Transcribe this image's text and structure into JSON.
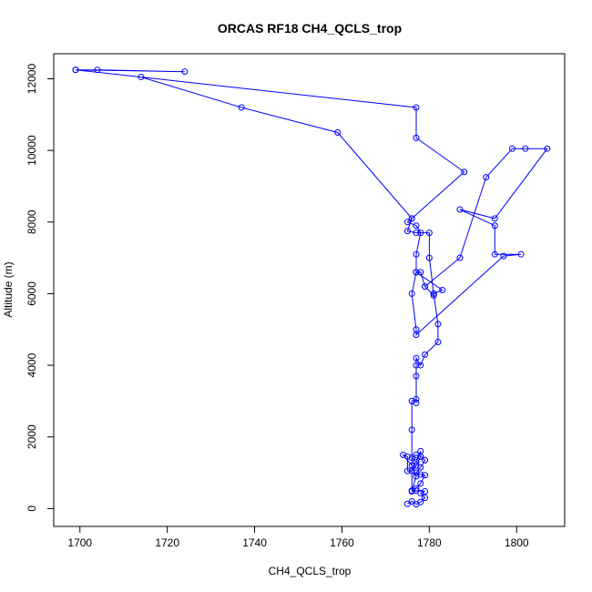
{
  "chart_data": {
    "type": "line",
    "title": "ORCAS RF18 CH4_QCLS_trop",
    "xlabel": "CH4_QCLS_trop",
    "ylabel": "Altitude (m)",
    "xlim": [
      1694,
      1811
    ],
    "ylim": [
      -500,
      12700
    ],
    "xticks": [
      1700,
      1720,
      1740,
      1760,
      1780,
      1800
    ],
    "yticks": [
      0,
      2000,
      4000,
      6000,
      8000,
      10000,
      12000
    ],
    "grid": false,
    "legend": "none",
    "color": "#0000ff",
    "series": [
      {
        "points": [
          [
            1775,
            130
          ],
          [
            1776,
            200
          ],
          [
            1777,
            120
          ],
          [
            1778,
            180
          ],
          [
            1779,
            300
          ],
          [
            1778,
            430
          ],
          [
            1779,
            480
          ],
          [
            1777,
            500
          ],
          [
            1776,
            480
          ],
          [
            1777,
            560
          ],
          [
            1778,
            700
          ],
          [
            1779,
            930
          ],
          [
            1778,
            950
          ],
          [
            1777,
            1000
          ],
          [
            1778,
            1150
          ],
          [
            1779,
            1350
          ],
          [
            1778,
            1450
          ],
          [
            1777,
            1500
          ],
          [
            1776,
            1420
          ],
          [
            1777,
            1300
          ],
          [
            1778,
            1600
          ],
          [
            1778,
            1450
          ],
          [
            1777,
            1200
          ],
          [
            1776,
            1050
          ],
          [
            1775,
            1050
          ],
          [
            1775,
            1450
          ],
          [
            1774,
            1500
          ],
          [
            1776,
            1200
          ],
          [
            1777,
            900
          ],
          [
            1776,
            500
          ],
          [
            1776,
            2200
          ],
          [
            1776,
            3000
          ],
          [
            1777,
            3050
          ],
          [
            1777,
            2950
          ],
          [
            1777,
            3700
          ],
          [
            1777,
            4000
          ],
          [
            1777,
            4200
          ],
          [
            1778,
            4000
          ],
          [
            1779,
            4300
          ],
          [
            1782,
            4650
          ],
          [
            1782,
            5150
          ],
          [
            1781,
            6000
          ],
          [
            1781,
            5950
          ],
          [
            1779,
            6200
          ],
          [
            1778,
            6600
          ],
          [
            1777,
            6600
          ],
          [
            1777,
            7100
          ],
          [
            1778,
            7700
          ],
          [
            1777,
            7900
          ],
          [
            1775,
            8000
          ],
          [
            1776,
            8100
          ],
          [
            1788,
            9400
          ],
          [
            1777,
            10350
          ],
          [
            1777,
            11200
          ],
          [
            1699,
            12250
          ],
          [
            1704,
            12250
          ],
          [
            1724,
            12200
          ],
          [
            1699,
            12250
          ],
          [
            1714,
            12050
          ],
          [
            1737,
            11200
          ],
          [
            1759,
            10500
          ],
          [
            1776,
            8100
          ],
          [
            1775,
            7750
          ],
          [
            1777,
            7700
          ],
          [
            1780,
            7700
          ],
          [
            1780,
            7000
          ],
          [
            1781,
            6000
          ],
          [
            1783,
            6100
          ],
          [
            1777,
            6600
          ],
          [
            1776,
            6000
          ],
          [
            1777,
            5000
          ],
          [
            1777,
            4850
          ],
          [
            1797,
            7050
          ],
          [
            1801,
            7100
          ],
          [
            1795,
            7100
          ],
          [
            1795,
            7900
          ],
          [
            1787,
            8350
          ],
          [
            1795,
            8100
          ],
          [
            1807,
            10050
          ],
          [
            1802,
            10050
          ],
          [
            1799,
            10050
          ],
          [
            1793,
            9250
          ],
          [
            1787,
            7000
          ],
          [
            1779,
            6200
          ]
        ]
      }
    ]
  }
}
